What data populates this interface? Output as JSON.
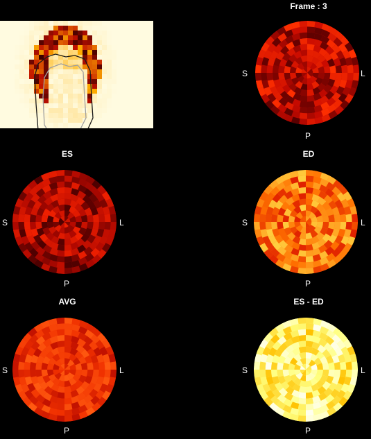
{
  "header": {
    "frame_label": "Frame : 3"
  },
  "slice_view": {
    "name": "short-axis slice with contour",
    "colors": {
      "background": "#fffbe0",
      "tissue_dark": "#3a0000",
      "tissue_mid": "#c01000",
      "tissue_light": "#ffb000",
      "contour": "#a0a0a0"
    }
  },
  "polar_maps": [
    {
      "id": "current",
      "title": "",
      "orientation": {
        "left": "S",
        "right": "L",
        "bottom": "P"
      },
      "palette": "dark-red",
      "colors": {
        "base": "#c80a00",
        "dark": "#5a0000",
        "light": "#ff3000"
      }
    },
    {
      "id": "es",
      "title": "ES",
      "orientation": {
        "left": "S",
        "right": "L",
        "bottom": "P"
      },
      "palette": "dark-red",
      "colors": {
        "base": "#b00800",
        "dark": "#4a0000",
        "light": "#f02000"
      }
    },
    {
      "id": "ed",
      "title": "ED",
      "orientation": {
        "left": "S",
        "right": "L",
        "bottom": "P"
      },
      "palette": "orange",
      "colors": {
        "base": "#ff7000",
        "dark": "#e02000",
        "light": "#ffd040"
      }
    },
    {
      "id": "avg",
      "title": "AVG",
      "orientation": {
        "left": "S",
        "right": "L",
        "bottom": "P"
      },
      "palette": "red",
      "colors": {
        "base": "#f03000",
        "dark": "#c01000",
        "light": "#ff5a10"
      }
    },
    {
      "id": "es-ed",
      "title": "ES - ED",
      "orientation": {
        "left": "S",
        "right": "L",
        "bottom": "P"
      },
      "palette": "yellow",
      "colors": {
        "base": "#ffff80",
        "dark": "#ffc000",
        "light": "#fffff0"
      }
    }
  ]
}
